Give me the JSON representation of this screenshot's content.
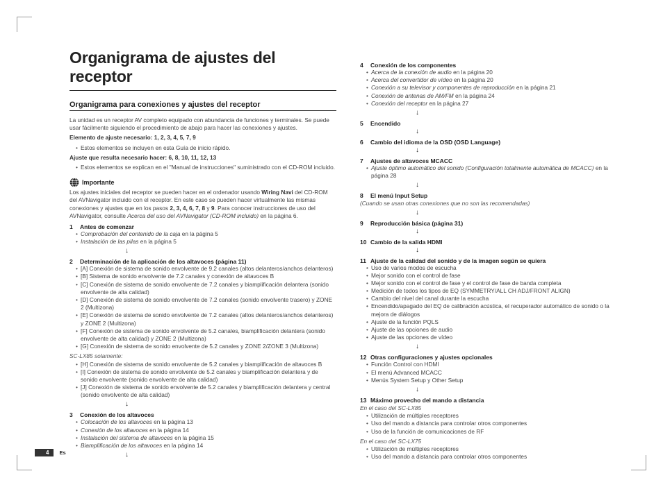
{
  "title": "Organigrama de ajustes del receptor",
  "subtitle": "Organigrama para conexiones y ajustes del receptor",
  "intro": "La unidad es un receptor AV completo equipado con abundancia de funciones y terminales. Se puede usar fácilmente siguiendo el procedimiento de abajo para hacer las conexiones y ajustes.",
  "req1_label": "Elemento de ajuste necesario",
  "req1_nums": ": 1, 2, 3, 4, 5, 7, 9",
  "req1_bullet": "Estos elementos se incluyen en esta Guía de inicio rápido.",
  "req2_label": "Ajuste que resulta necesario hacer",
  "req2_nums": ": 6, 8, 10, 11, 12, 13",
  "req2_bullet": "Estos elementos se explican en el \"Manual de instrucciones\" suministrado con el CD-ROM incluido.",
  "important_label": "Importante",
  "important_body_a": "Los ajustes iniciales del receptor se pueden hacer en el ordenador usando ",
  "important_body_b": "Wiring Navi",
  "important_body_c": " del CD-ROM del AVNavigator incluido con el receptor. En este caso se pueden hacer virtualmente las mismas conexiones y ajustes que en los pasos ",
  "important_body_d": "2, 3, 4, 6, 7, 8",
  "important_body_e": " y ",
  "important_body_f": "9",
  "important_body_g": ". Para conocer instrucciones de uso del AVNavigator, consulte ",
  "important_body_h": "Acerca del uso del AVNavigator (CD-ROM incluido)",
  "important_body_i": " en la página 6.",
  "steps_left": [
    {
      "num": "1",
      "title": "Antes de comenzar",
      "bullets": [
        {
          "i": "Comprobación del contenido de la caja",
          "t": " en la página 5"
        },
        {
          "i": "Instalación de las pilas",
          "t": " en la página 5"
        }
      ]
    },
    {
      "num": "2",
      "title": "Determinación de la aplicación de los altavoces (página 11)",
      "bullets": [
        {
          "t": "[A] Conexión de sistema de sonido envolvente de 9.2 canales (altos delanteros/anchos delanteros)"
        },
        {
          "t": "[B] Sistema de sonido envolvente de 7.2 canales y conexión de altavoces B"
        },
        {
          "t": "[C] Conexión de sistema de sonido envolvente de 7.2 canales y biamplificación delantera (sonido envolvente de alta calidad)"
        },
        {
          "t": "[D] Conexión de sistema de sonido envolvente de 7.2 canales (sonido envolvente trasero) y ZONE 2 (Multizona)"
        },
        {
          "t": "[E] Conexión de sistema de sonido envolvente de 7.2 canales (altos delanteros/anchos delanteros) y ZONE 2 (Multizona)"
        },
        {
          "t": "[F] Conexión de sistema de sonido envolvente de 5.2 canales, biamplificación delantera (sonido envolvente de alta calidad) y ZONE 2 (Multizona)"
        },
        {
          "t": "[G] Conexión de sistema de sonido envolvente de 5.2 canales y ZONE 2/ZONE 3 (Multizona)"
        }
      ],
      "note": "SC-LX85 solamente:",
      "bullets2": [
        {
          "t": "[H] Conexión de sistema de sonido envolvente de 5.2 canales y biamplificación de altavoces B"
        },
        {
          "t": "[I] Conexión de sistema de sonido envolvente de 5.2 canales y biamplificación delantera y de sonido envolvente (sonido envolvente de alta calidad)"
        },
        {
          "t": "[J] Conexión de sistema de sonido envolvente de 5.2 canales y biamplificación delantera y central (sonido envolvente de alta calidad)"
        }
      ]
    },
    {
      "num": "3",
      "title": "Conexión de los altavoces",
      "bullets": [
        {
          "i": "Colocación de los altavoces",
          "t": " en la página 13"
        },
        {
          "i": "Conexión de los altavoces",
          "t": " en la página 14"
        },
        {
          "i": "Instalación del sistema de altavoces",
          "t": " en la página 15"
        },
        {
          "i": "Biamplificación de los altavoces",
          "t": " en la página 14"
        }
      ]
    }
  ],
  "steps_right": [
    {
      "num": "4",
      "title": "Conexión de los componentes",
      "bullets": [
        {
          "i": "Acerca de la conexión de audio",
          "t": " en la página 20"
        },
        {
          "i": "Acerca del convertidor de vídeo",
          "t": " en la página 20"
        },
        {
          "i": "Conexión a su televisor y componentes de reproducción",
          "t": " en la página 21"
        },
        {
          "i": "Conexión de antenas de AM/FM",
          "t": " en la página 24"
        },
        {
          "i": "Conexión del receptor",
          "t": " en la página 27"
        }
      ]
    },
    {
      "num": "5",
      "title": "Encendido"
    },
    {
      "num": "6",
      "title": "Cambio del idioma de la OSD (OSD Language)"
    },
    {
      "num": "7",
      "title": "Ajustes de altavoces MCACC",
      "bullets": [
        {
          "i": "Ajuste óptimo automático del sonido (Configuración totalmente automática de MCACC)",
          "t": " en la página 28"
        }
      ]
    },
    {
      "num": "8",
      "title": "El menú Input Setup",
      "post_note": "(Cuando se usan otras conexiones que no son las recomendadas)"
    },
    {
      "num": "9",
      "title": "Reproducción básica (página 31)"
    },
    {
      "num": "10",
      "title": "Cambio de la salida HDMI"
    },
    {
      "num": "11",
      "title": "Ajuste de la calidad del sonido y de la imagen según se quiera",
      "bullets": [
        {
          "t": "Uso de varios modos de escucha"
        },
        {
          "t": "Mejor sonido con el control de fase"
        },
        {
          "t": "Mejor sonido con el control de fase y el control de fase de banda completa"
        },
        {
          "t": "Medición de todos los tipos de EQ (SYMMETRY/ALL CH ADJ/FRONT ALIGN)"
        },
        {
          "t": "Cambio del nivel del canal durante la escucha"
        },
        {
          "t": "Encendido/apagado del EQ de calibración acústica, el recuperador automático de sonido o la mejora de diálogos"
        },
        {
          "t": "Ajuste de la función PQLS"
        },
        {
          "t": "Ajuste de las opciones de audio"
        },
        {
          "t": "Ajuste de las opciones de vídeo"
        }
      ]
    },
    {
      "num": "12",
      "title": "Otras configuraciones y ajustes opcionales",
      "bullets": [
        {
          "t": "Función Control con HDMI"
        },
        {
          "t": "El menú Advanced MCACC"
        },
        {
          "t": "Menús System Setup y Other Setup"
        }
      ]
    },
    {
      "num": "13",
      "title": "Máximo provecho del mando a distancia",
      "post_note": "En el caso del SC-LX85",
      "bullets": [
        {
          "t": "Utilización de múltiples receptores"
        },
        {
          "t": "Uso del mando a distancia para controlar otros componentes"
        },
        {
          "t": "Uso de la función de comunicaciones de RF"
        }
      ],
      "post_note2": "En el caso del SC-LX75",
      "bullets2": [
        {
          "t": "Utilización de múltiples receptores"
        },
        {
          "t": "Uso del mando a distancia para controlar otros componentes"
        }
      ]
    }
  ],
  "footer_page": "4",
  "footer_lang": "Es",
  "arrow_glyph": "↓"
}
